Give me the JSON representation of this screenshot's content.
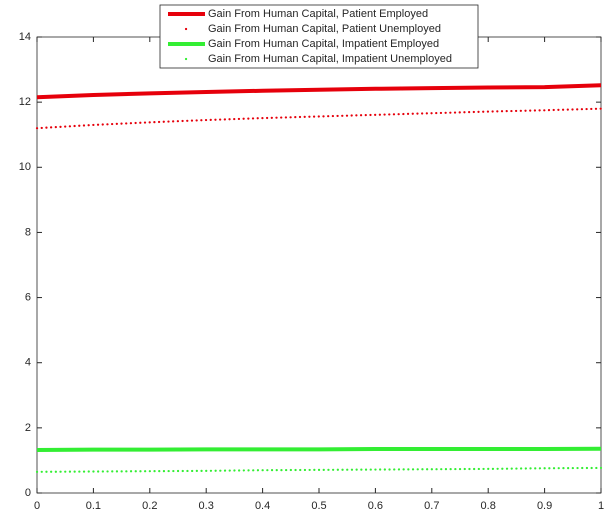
{
  "chart_data": {
    "type": "line",
    "x": [
      0,
      0.1,
      0.2,
      0.3,
      0.4,
      0.5,
      0.6,
      0.7,
      0.8,
      0.9,
      1
    ],
    "series": [
      {
        "name": "Gain From Human Capital, Patient Employed",
        "color": "#e6000b",
        "style": "solid",
        "values": [
          12.15,
          12.22,
          12.27,
          12.31,
          12.35,
          12.38,
          12.41,
          12.43,
          12.45,
          12.46,
          12.52
        ]
      },
      {
        "name": "Gain From Human Capital, Patient Unemployed",
        "color": "#e6000b",
        "style": "dotted",
        "values": [
          11.2,
          11.3,
          11.38,
          11.45,
          11.51,
          11.56,
          11.61,
          11.66,
          11.71,
          11.75,
          11.8
        ]
      },
      {
        "name": "Gain From Human Capital, Impatient Employed",
        "color": "#33ee33",
        "style": "solid",
        "values": [
          1.32,
          1.33,
          1.33,
          1.34,
          1.34,
          1.34,
          1.35,
          1.35,
          1.35,
          1.35,
          1.36
        ]
      },
      {
        "name": "Gain From Human Capital, Impatient Unemployed",
        "color": "#33ee33",
        "style": "dotted",
        "values": [
          0.65,
          0.66,
          0.67,
          0.68,
          0.7,
          0.71,
          0.72,
          0.73,
          0.74,
          0.76,
          0.77
        ]
      }
    ],
    "xlim": [
      0,
      1
    ],
    "xticks": [
      0,
      0.1,
      0.2,
      0.3,
      0.4,
      0.5,
      0.6,
      0.7,
      0.8,
      0.9,
      1
    ],
    "ylim": [
      0,
      14
    ],
    "yticks": [
      0,
      2,
      4,
      6,
      8,
      10,
      12,
      14
    ],
    "grid": false,
    "legend_loc": "north"
  }
}
